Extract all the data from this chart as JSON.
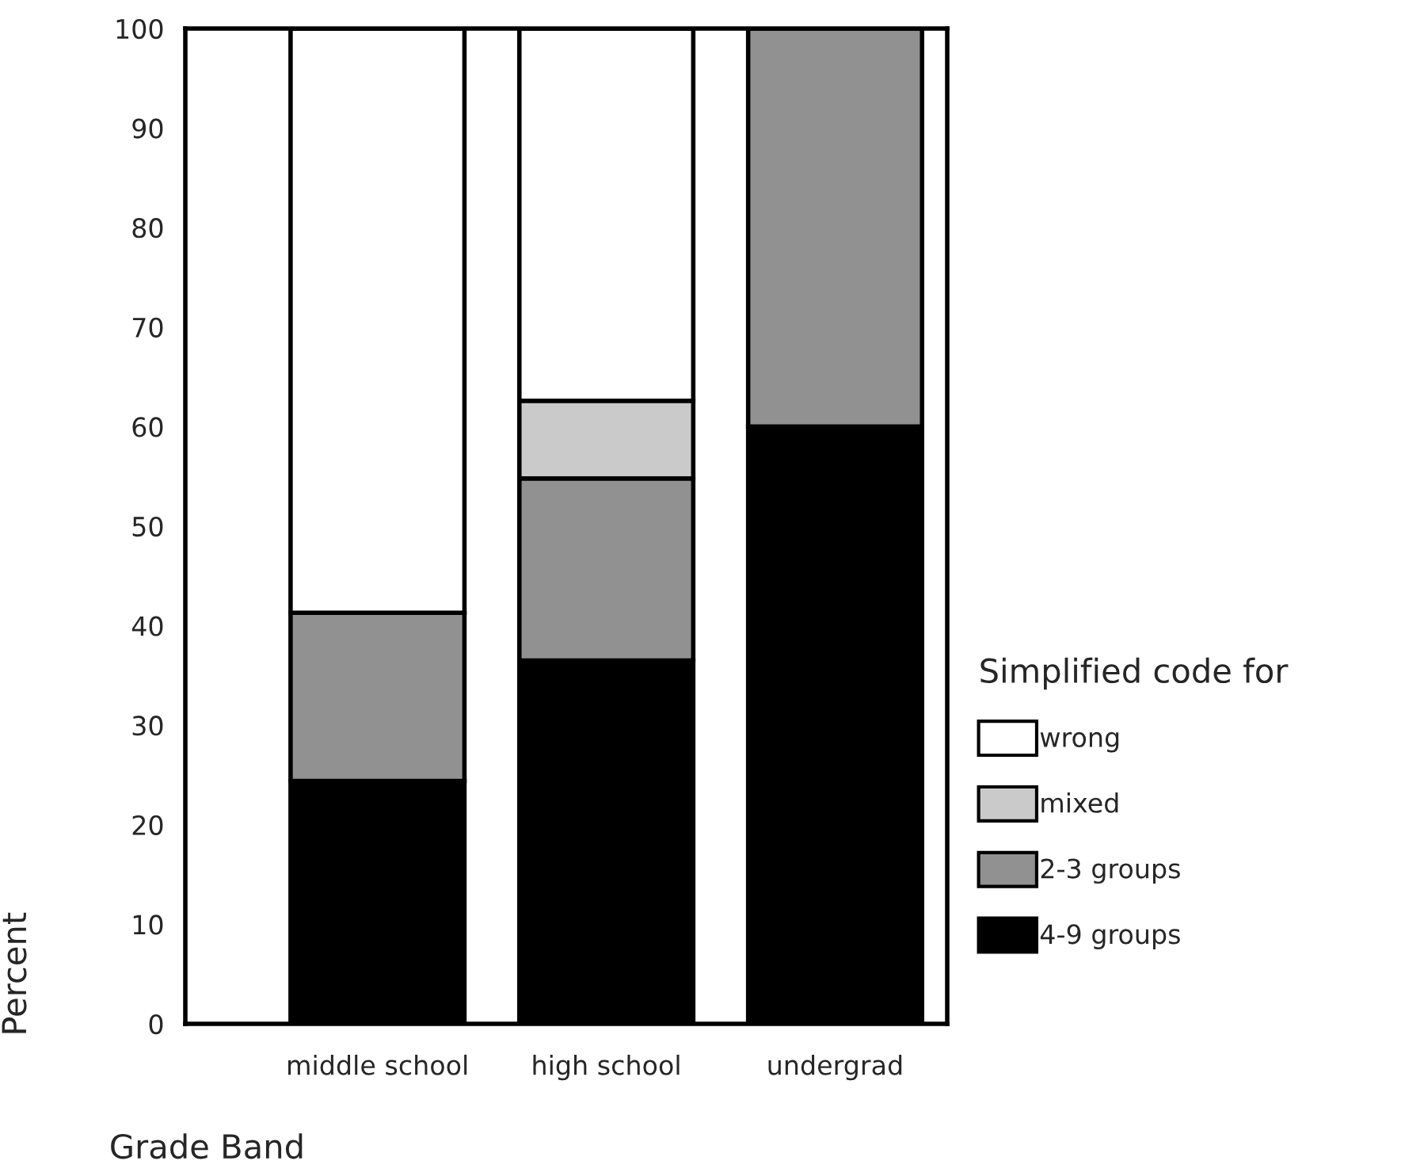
{
  "chart_data": {
    "type": "bar",
    "stacked": true,
    "xlabel": "Grade Band",
    "ylabel": "Percent",
    "legend_title": "Simplified code for",
    "categories": [
      "middle school",
      "high school",
      "undergrad"
    ],
    "series": [
      {
        "name": "4-9 groups",
        "color": "#000000",
        "values": [
          24.4,
          36.5,
          60
        ]
      },
      {
        "name": "2-3 groups",
        "color": "#919191",
        "values": [
          16.9,
          18.3,
          40
        ]
      },
      {
        "name": "mixed",
        "color": "#cacaca",
        "values": [
          0,
          7.8,
          0
        ]
      },
      {
        "name": "wrong",
        "color": "#ffffff",
        "values": [
          58.7,
          37.4,
          0
        ]
      }
    ],
    "ylim": [
      0,
      100
    ],
    "yticks": [
      0,
      10,
      20,
      30,
      40,
      50,
      60,
      70,
      80,
      90,
      100
    ],
    "grid": false,
    "legend": "right"
  }
}
